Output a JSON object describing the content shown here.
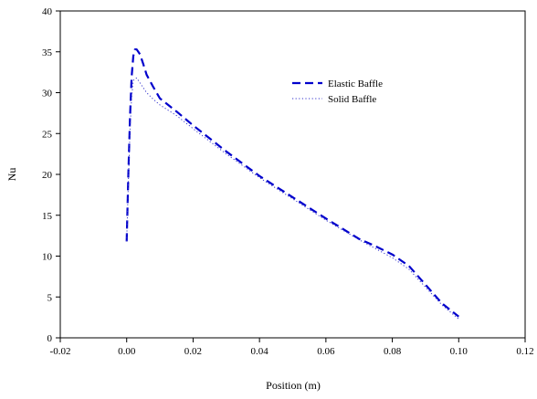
{
  "chart_data": {
    "type": "line",
    "title": "",
    "xlabel": "Position (m)",
    "ylabel": "Nu",
    "xlim": [
      -0.02,
      0.12
    ],
    "ylim": [
      0,
      40
    ],
    "x_ticks": [
      "-0.02",
      "0.00",
      "0.02",
      "0.04",
      "0.06",
      "0.08",
      "0.10",
      "0.12"
    ],
    "y_ticks": [
      "0",
      "5",
      "10",
      "15",
      "20",
      "25",
      "30",
      "35",
      "40"
    ],
    "grid": false,
    "legend_position": "top-right",
    "series": [
      {
        "name": "Elastic Baffle",
        "style": "dashed",
        "color": "#0000cc",
        "x": [
          0.0,
          0.0005,
          0.001,
          0.0015,
          0.002,
          0.0025,
          0.003,
          0.004,
          0.005,
          0.006,
          0.008,
          0.01,
          0.015,
          0.02,
          0.03,
          0.04,
          0.05,
          0.06,
          0.07,
          0.075,
          0.08,
          0.085,
          0.09,
          0.095,
          0.1
        ],
        "y": [
          11.8,
          20.0,
          27.0,
          32.0,
          34.5,
          35.3,
          35.3,
          34.7,
          33.5,
          32.2,
          30.7,
          29.3,
          27.7,
          26.0,
          22.8,
          19.8,
          17.2,
          14.6,
          12.1,
          11.2,
          10.2,
          8.8,
          6.5,
          4.2,
          2.6
        ]
      },
      {
        "name": "Solid Baffle",
        "style": "dotted",
        "color": "#3333cc",
        "x": [
          0.0,
          0.0005,
          0.001,
          0.0015,
          0.002,
          0.003,
          0.004,
          0.006,
          0.008,
          0.01,
          0.015,
          0.02,
          0.03,
          0.04,
          0.05,
          0.06,
          0.07,
          0.08,
          0.085,
          0.09,
          0.095,
          0.1
        ],
        "y": [
          11.8,
          19.0,
          25.5,
          29.5,
          31.5,
          31.8,
          31.2,
          30.0,
          29.2,
          28.5,
          27.2,
          25.6,
          22.5,
          19.6,
          17.0,
          14.4,
          12.0,
          9.8,
          8.4,
          6.2,
          4.0,
          2.3
        ]
      }
    ]
  }
}
